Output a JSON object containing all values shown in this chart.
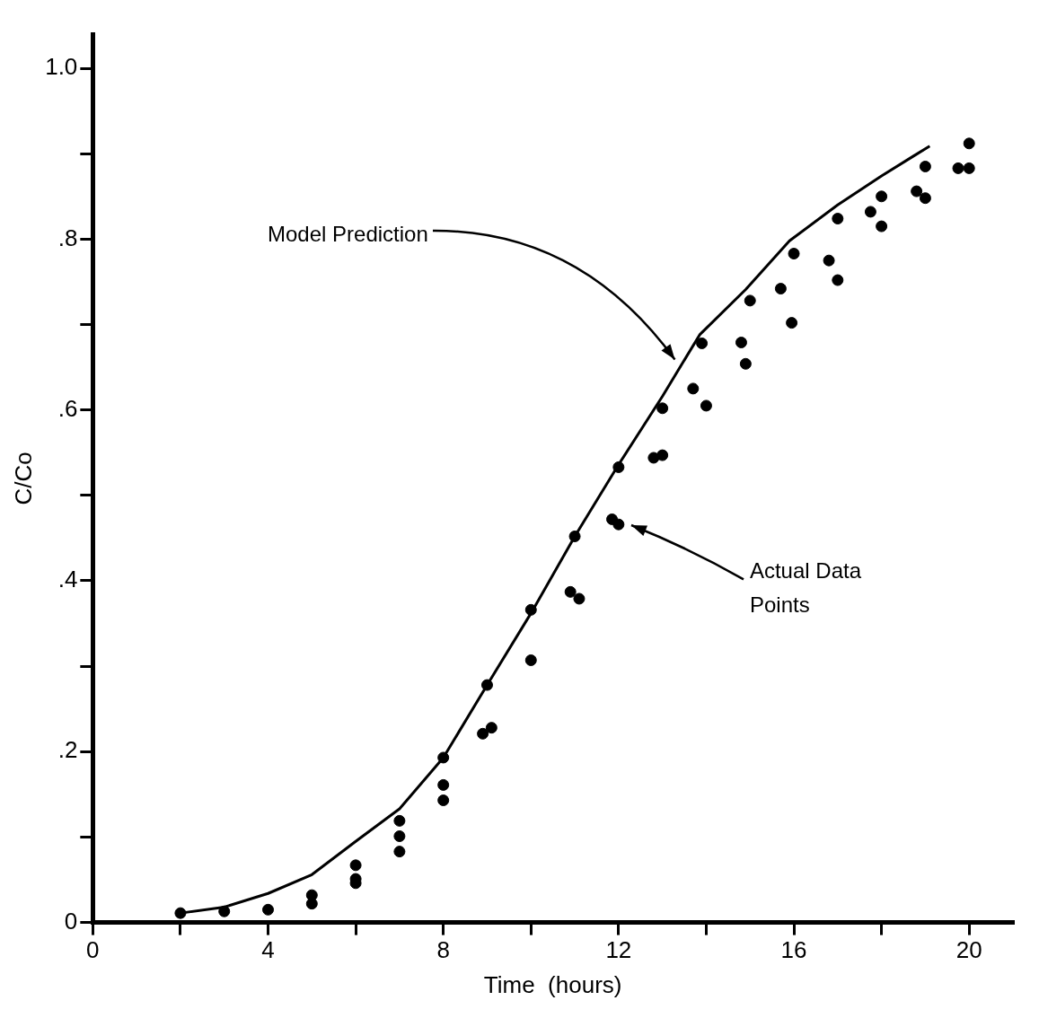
{
  "chart_data": {
    "type": "scatter",
    "xlabel": "Time  (hours)",
    "ylabel": "C/Co",
    "xlim": [
      0,
      21
    ],
    "ylim": [
      0,
      1.04
    ],
    "xticks": [
      0,
      {
        "value": 2,
        "label": null
      },
      4,
      {
        "value": 6,
        "label": null
      },
      8,
      {
        "value": 10,
        "label": null
      },
      12,
      {
        "value": 14,
        "label": null
      },
      16,
      {
        "value": 18,
        "label": null
      },
      20
    ],
    "yticks": [
      0,
      {
        "value": 0.1,
        "label": null
      },
      {
        "value": 0.2,
        "label": ".2"
      },
      {
        "value": 0.3,
        "label": null
      },
      {
        "value": 0.4,
        "label": ".4"
      },
      {
        "value": 0.5,
        "label": null
      },
      {
        "value": 0.6,
        "label": ".6"
      },
      {
        "value": 0.7,
        "label": null
      },
      {
        "value": 0.8,
        "label": ".8"
      },
      {
        "value": 0.9,
        "label": null
      },
      {
        "value": 1.0,
        "label": "1.0"
      }
    ],
    "grid": false,
    "legend": false,
    "series": [
      {
        "type": "line",
        "color": "#000000",
        "marker": "none",
        "line_style": "solid",
        "x": [
          2,
          3,
          4,
          5,
          6,
          7,
          8,
          9,
          10,
          11,
          12,
          13,
          13.85,
          14.9,
          15.9,
          17,
          18,
          19.1
        ],
        "values": [
          0.011,
          0.018,
          0.034,
          0.056,
          0.095,
          0.133,
          0.193,
          0.278,
          0.362,
          0.452,
          0.536,
          0.616,
          0.688,
          0.741,
          0.798,
          0.84,
          0.874,
          0.909
        ]
      },
      {
        "type": "scatter",
        "color": "#000000",
        "marker": "circle",
        "x": [
          2,
          3,
          4,
          5,
          5,
          6,
          6,
          6,
          7,
          7,
          7,
          8,
          8,
          8,
          9,
          8.9,
          9.1,
          10,
          10,
          11,
          10.9,
          11.1,
          11.85,
          12,
          12,
          12.8,
          13,
          13,
          13.7,
          13.9,
          14,
          14.8,
          14.9,
          15,
          15.7,
          15.95,
          16,
          16.8,
          17,
          17,
          17.75,
          18,
          18,
          18.8,
          19,
          19,
          19.75,
          20,
          20
        ],
        "values": [
          0.011,
          0.013,
          0.015,
          0.032,
          0.022,
          0.067,
          0.051,
          0.046,
          0.119,
          0.101,
          0.083,
          0.193,
          0.161,
          0.143,
          0.278,
          0.221,
          0.228,
          0.366,
          0.307,
          0.452,
          0.387,
          0.379,
          0.472,
          0.466,
          0.533,
          0.544,
          0.547,
          0.602,
          0.625,
          0.678,
          0.605,
          0.679,
          0.654,
          0.728,
          0.742,
          0.702,
          0.783,
          0.775,
          0.752,
          0.824,
          0.832,
          0.815,
          0.85,
          0.856,
          0.848,
          0.885,
          0.883,
          0.883,
          0.912
        ]
      }
    ],
    "annotations": [
      "Model Prediction",
      "Actual Data\nPoints"
    ]
  }
}
